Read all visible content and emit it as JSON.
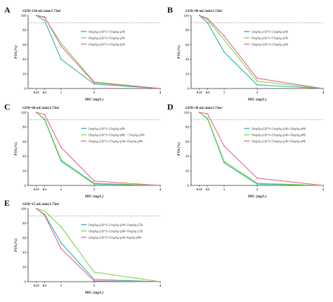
{
  "figure": {
    "panels": [
      {
        "letter": "A",
        "title": "GFR=130 mL/min/1.73m²"
      },
      {
        "letter": "B",
        "title": "GFR=90 mL/min/1.73m²"
      },
      {
        "letter": "C",
        "title": "GFR=60 mL/min/1.73m²"
      },
      {
        "letter": "D",
        "title": "GFR=30 mL/min/1.73m²"
      },
      {
        "letter": "E",
        "title": "GFR=15 mL/min/1.73m²"
      }
    ]
  },
  "chart_data": [
    {
      "type": "line",
      "title": "GFR=130 mL/min/1.73m²",
      "xlabel": "MIC (mg/L)",
      "ylabel": "PTA (%)",
      "x": [
        0.25,
        0.5,
        1,
        2,
        4
      ],
      "xticks": [
        "0.25",
        "0.5",
        "1",
        "2",
        "4"
      ],
      "yticks": [
        "0",
        "20",
        "40",
        "60",
        "80",
        "100"
      ],
      "ylim": [
        0,
        100
      ],
      "reference_line": 90,
      "legend_position": "right",
      "series": [
        {
          "name": "15mg/kg q12h*3+15mg/kg q24h",
          "color": "#2bb3a0",
          "values": [
            100,
            93,
            40,
            6,
            0
          ]
        },
        {
          "name": "15mg/kg q12h*3+15mg/kg q20h",
          "color": "#7ad63c",
          "values": [
            100,
            97,
            62,
            9,
            0
          ]
        },
        {
          "name": "15mg/kg q12h*3+15mg/kg q24h",
          "color": "#e8609a",
          "values": [
            100,
            98,
            58,
            8,
            0
          ]
        }
      ]
    },
    {
      "type": "line",
      "title": "GFR=90 mL/min/1.73m²",
      "xlabel": "MIC (mg/L)",
      "ylabel": "PTA (%)",
      "x": [
        0.25,
        0.5,
        1,
        2,
        4
      ],
      "xticks": [
        "0.25",
        "0.5",
        "1",
        "2",
        "4"
      ],
      "yticks": [
        "0",
        "20",
        "40",
        "60",
        "80",
        "100"
      ],
      "ylim": [
        0,
        100
      ],
      "reference_line": 90,
      "legend_position": "right",
      "series": [
        {
          "name": "12mg/kg q12h*3+12mg/kg q24h",
          "color": "#2bb3a0",
          "values": [
            100,
            90,
            50,
            5,
            0
          ]
        },
        {
          "name": "15mg/kg q12h*3+15mg/kg q24h",
          "color": "#7ad63c",
          "values": [
            100,
            94,
            67,
            10,
            0
          ]
        },
        {
          "name": "15mg/kg q12h*3+15mg/kg q24h",
          "color": "#e8609a",
          "values": [
            100,
            96,
            72,
            14,
            0
          ]
        }
      ]
    },
    {
      "type": "line",
      "title": "GFR=60 mL/min/1.73m²",
      "xlabel": "MIC (mg/L)",
      "ylabel": "PTA (%)",
      "x": [
        0.25,
        0.5,
        1,
        2,
        4
      ],
      "xticks": [
        "0.25",
        "0.5",
        "1",
        "2",
        "4"
      ],
      "yticks": [
        "0",
        "20",
        "40",
        "60",
        "80",
        "100"
      ],
      "ylim": [
        0,
        100
      ],
      "reference_line": 90,
      "legend_position": "right",
      "series": [
        {
          "name": "12mg/kg q12h*3+12mg/kg q48h",
          "color": "#2bb3a0",
          "values": [
            100,
            90,
            33,
            2,
            0
          ]
        },
        {
          "name": "15mg/kg q12h*3+15mg/kg q48h - 7.5mg/kg q24h",
          "color": "#7ad63c",
          "values": [
            100,
            91,
            35,
            3,
            0
          ]
        },
        {
          "name": "15mg/kg q12h*3+15mg/kg q24h+15mg/kg q48h",
          "color": "#e8609a",
          "values": [
            100,
            97,
            52,
            6,
            0
          ]
        }
      ]
    },
    {
      "type": "line",
      "title": "GFR=30 mL/min/1.73m²",
      "xlabel": "MIC (mg/L)",
      "ylabel": "PTA (%)",
      "x": [
        0.25,
        0.5,
        1,
        2,
        4
      ],
      "xticks": [
        "0.25",
        "0.5",
        "1",
        "2",
        "4"
      ],
      "yticks": [
        "0",
        "20",
        "40",
        "60",
        "80",
        "100"
      ],
      "ylim": [
        0,
        100
      ],
      "reference_line": 90,
      "legend_position": "right",
      "series": [
        {
          "name": "12mg/kg q12h*3+12mg/kg q24h+12mg/kg q48h",
          "color": "#2bb3a0",
          "values": [
            100,
            91,
            31,
            2,
            0
          ]
        },
        {
          "name": "15mg/kg q12h*3+15mg/kg q24h+15mg/kg q48h",
          "color": "#7ad63c",
          "values": [
            100,
            92,
            33,
            3,
            0
          ]
        },
        {
          "name": "15mg/kg q12h*3+15mg/kg q24h+15mg/kg q48h",
          "color": "#e8609a",
          "values": [
            100,
            98,
            54,
            10,
            0
          ]
        }
      ]
    },
    {
      "type": "line",
      "title": "GFR=15 mL/min/1.73m²",
      "xlabel": "MIC (mg/L)",
      "ylabel": "PTA (%)",
      "x": [
        0.25,
        0.5,
        1,
        2,
        4
      ],
      "xticks": [
        "0.25",
        "0.5",
        "1",
        "2",
        "4"
      ],
      "yticks": [
        "0",
        "20",
        "40",
        "60",
        "80",
        "100"
      ],
      "ylim": [
        0,
        100
      ],
      "reference_line": 90,
      "legend_position": "right",
      "series": [
        {
          "name": "12mg/kg q12h*3+12mg/kg q24h+12mg/kg q72h",
          "color": "#2bb3a0",
          "values": [
            100,
            92,
            53,
            3,
            0
          ]
        },
        {
          "name": "12mg/kg q12h*3+12mg/kg q24h+15mg/kg q72h",
          "color": "#7ad63c",
          "values": [
            100,
            97,
            75,
            13,
            0
          ]
        },
        {
          "name": "12mg/kg q12h*3+12mg/kg q24h+3mg/kg q48h",
          "color": "#e8609a",
          "values": [
            100,
            91,
            45,
            1,
            0
          ]
        }
      ]
    }
  ]
}
